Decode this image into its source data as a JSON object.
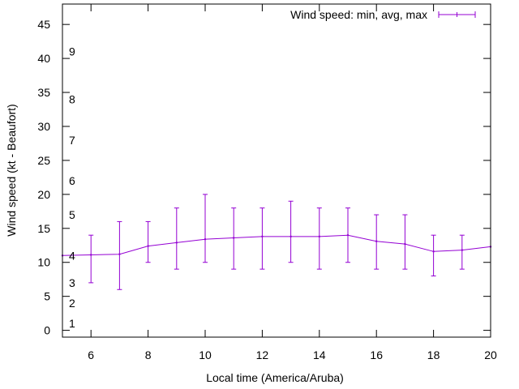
{
  "chart_data": {
    "type": "line",
    "title": "",
    "xlabel": "Local time (America/Aruba)",
    "ylabel": "Wind speed (kt - Beaufort)",
    "xlim": [
      5,
      20
    ],
    "ylim": [
      -1,
      48
    ],
    "x_ticks": [
      6,
      8,
      10,
      12,
      14,
      16,
      18,
      20
    ],
    "y_ticks": [
      0,
      5,
      10,
      15,
      20,
      25,
      30,
      35,
      40,
      45
    ],
    "beaufort_labels": [
      {
        "label": "1",
        "y": 1
      },
      {
        "label": "2",
        "y": 4
      },
      {
        "label": "3",
        "y": 7
      },
      {
        "label": "4",
        "y": 11
      },
      {
        "label": "5",
        "y": 17
      },
      {
        "label": "6",
        "y": 22
      },
      {
        "label": "7",
        "y": 28
      },
      {
        "label": "8",
        "y": 34
      },
      {
        "label": "9",
        "y": 41
      }
    ],
    "legend": {
      "label": "Wind speed: min, avg, max",
      "position": "top-right"
    },
    "color": "#9400d3",
    "series": [
      {
        "name": "Wind speed: min, avg, max",
        "x": [
          5,
          6,
          7,
          8,
          9,
          10,
          11,
          12,
          13,
          14,
          15,
          16,
          17,
          18,
          19,
          20
        ],
        "avg": [
          11,
          11.1,
          11.2,
          12.4,
          12.9,
          13.4,
          13.6,
          13.8,
          13.8,
          13.8,
          14,
          13.1,
          12.7,
          11.6,
          11.8,
          12.3
        ],
        "min": [
          null,
          7,
          6,
          10,
          9,
          10,
          9,
          9,
          10,
          9,
          10,
          9,
          9,
          8,
          9,
          null
        ],
        "max": [
          null,
          14,
          16,
          16,
          18,
          20,
          18,
          18,
          19,
          18,
          18,
          17,
          17,
          14,
          14,
          null
        ]
      }
    ]
  }
}
